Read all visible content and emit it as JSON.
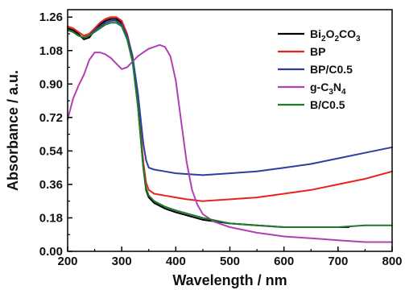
{
  "chart_data": {
    "type": "line",
    "xlabel": "Wavelength / nm",
    "ylabel": "Absorbance / a.u.",
    "xlim": [
      200,
      800
    ],
    "ylim": [
      0.0,
      1.3
    ],
    "xticks": [
      200,
      300,
      400,
      500,
      600,
      700,
      800
    ],
    "yticks": [
      0.0,
      0.18,
      0.36,
      0.54,
      0.72,
      0.9,
      1.08,
      1.26
    ],
    "xtick_labels": [
      "200",
      "300",
      "400",
      "500",
      "600",
      "700",
      "800"
    ],
    "ytick_labels": [
      "0.00",
      "0.18",
      "0.36",
      "0.54",
      "0.72",
      "0.90",
      "1.08",
      "1.26"
    ],
    "legend_position": "top-right",
    "grid": false,
    "series": [
      {
        "name": "Bi2O2CO3",
        "label_parts": [
          [
            "Bi",
            ""
          ],
          [
            "2",
            "sub"
          ],
          [
            "O",
            ""
          ],
          [
            "2",
            "sub"
          ],
          [
            "CO",
            ""
          ],
          [
            "3",
            "sub"
          ]
        ],
        "color": "#000000",
        "x": [
          200,
          210,
          220,
          230,
          240,
          250,
          260,
          270,
          280,
          290,
          300,
          310,
          320,
          330,
          340,
          345,
          350,
          360,
          380,
          400,
          450,
          500,
          550,
          600,
          650,
          700,
          720
        ],
        "y": [
          1.2,
          1.19,
          1.17,
          1.14,
          1.15,
          1.19,
          1.22,
          1.24,
          1.25,
          1.25,
          1.23,
          1.16,
          1.03,
          0.78,
          0.45,
          0.33,
          0.29,
          0.26,
          0.23,
          0.21,
          0.17,
          0.15,
          0.14,
          0.13,
          0.13,
          0.13,
          0.13
        ]
      },
      {
        "name": "BP",
        "label_parts": [
          [
            "BP",
            ""
          ]
        ],
        "color": "#e8231f",
        "x": [
          200,
          210,
          220,
          230,
          240,
          250,
          260,
          270,
          280,
          290,
          300,
          310,
          320,
          330,
          340,
          345,
          350,
          360,
          380,
          400,
          420,
          450,
          500,
          550,
          600,
          650,
          700,
          750,
          800
        ],
        "y": [
          1.21,
          1.2,
          1.18,
          1.16,
          1.17,
          1.2,
          1.23,
          1.25,
          1.26,
          1.26,
          1.24,
          1.17,
          1.05,
          0.8,
          0.48,
          0.37,
          0.33,
          0.31,
          0.3,
          0.29,
          0.28,
          0.27,
          0.28,
          0.29,
          0.31,
          0.33,
          0.36,
          0.39,
          0.43
        ]
      },
      {
        "name": "BP/C0.5",
        "label_parts": [
          [
            "BP/C0.5",
            ""
          ]
        ],
        "color": "#2e3ea0",
        "x": [
          200,
          210,
          220,
          230,
          240,
          250,
          260,
          270,
          280,
          290,
          300,
          310,
          320,
          330,
          340,
          345,
          350,
          360,
          380,
          400,
          450,
          500,
          550,
          600,
          650,
          700,
          750,
          800
        ],
        "y": [
          1.19,
          1.18,
          1.16,
          1.15,
          1.16,
          1.19,
          1.21,
          1.23,
          1.24,
          1.24,
          1.22,
          1.16,
          1.05,
          0.85,
          0.58,
          0.49,
          0.45,
          0.44,
          0.43,
          0.42,
          0.41,
          0.42,
          0.43,
          0.45,
          0.47,
          0.5,
          0.53,
          0.56
        ]
      },
      {
        "name": "g-C3N4",
        "label_parts": [
          [
            "g-C",
            ""
          ],
          [
            "3",
            "sub"
          ],
          [
            "N",
            ""
          ],
          [
            "4",
            "sub"
          ]
        ],
        "color": "#b13fb5",
        "x": [
          200,
          210,
          220,
          230,
          240,
          250,
          260,
          270,
          280,
          290,
          300,
          310,
          320,
          330,
          340,
          350,
          360,
          370,
          380,
          390,
          400,
          410,
          420,
          430,
          440,
          450,
          470,
          500,
          550,
          600,
          650,
          700,
          750,
          800
        ],
        "y": [
          0.71,
          0.82,
          0.89,
          0.95,
          1.03,
          1.07,
          1.07,
          1.06,
          1.04,
          1.01,
          0.98,
          0.99,
          1.02,
          1.05,
          1.07,
          1.09,
          1.1,
          1.11,
          1.1,
          1.05,
          0.92,
          0.7,
          0.48,
          0.33,
          0.25,
          0.2,
          0.16,
          0.13,
          0.1,
          0.08,
          0.07,
          0.06,
          0.05,
          0.05
        ]
      },
      {
        "name": "B/C0.5",
        "label_parts": [
          [
            "B/C0.5",
            ""
          ]
        ],
        "color": "#1e7a2a",
        "x": [
          200,
          210,
          220,
          230,
          240,
          250,
          260,
          270,
          280,
          290,
          300,
          310,
          320,
          330,
          340,
          345,
          350,
          360,
          380,
          400,
          450,
          500,
          550,
          600,
          650,
          700,
          750,
          800
        ],
        "y": [
          1.19,
          1.18,
          1.16,
          1.15,
          1.16,
          1.18,
          1.2,
          1.22,
          1.23,
          1.23,
          1.21,
          1.14,
          1.02,
          0.78,
          0.45,
          0.34,
          0.3,
          0.27,
          0.24,
          0.22,
          0.18,
          0.15,
          0.14,
          0.13,
          0.13,
          0.13,
          0.14,
          0.14
        ]
      }
    ]
  }
}
